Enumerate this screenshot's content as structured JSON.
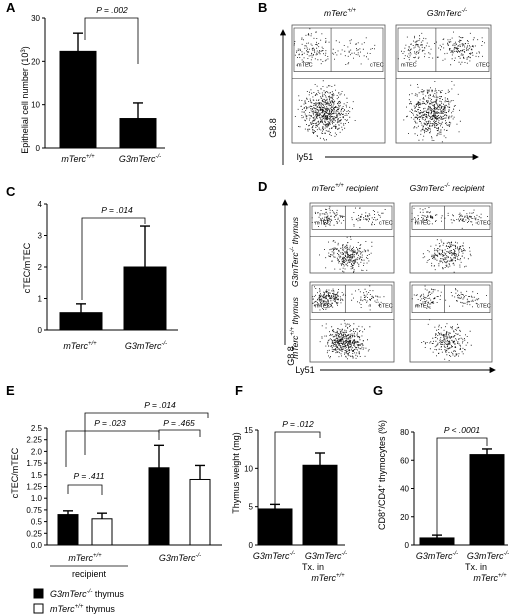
{
  "panels": {
    "A": {
      "label": "A",
      "ylabel": "Epithelial cell number (10",
      "ylabel_sup": "3",
      "ylabel_end": ")",
      "pvalue": "P = .002"
    },
    "B": {
      "label": "B",
      "col1": "mTerc+/+",
      "col2": "G3mTerc-/-",
      "yaxis": "G8.8",
      "xaxis": "ly51",
      "gate_m": "mTEC",
      "gate_c": "cTEC"
    },
    "C": {
      "label": "C",
      "ylabel": "cTEC/mTEC",
      "pvalue": "P = .014"
    },
    "D": {
      "label": "D",
      "col1": "mTerc+/+ recipient",
      "col2": "G3mTerc-/- recipient",
      "row1": "G3mTerc-/- thymus",
      "row2": "mTerc+/+ thymus",
      "yaxis": "G8.8",
      "xaxis": "Ly51",
      "gate_m": "mTEC",
      "gate_c": "cTEC"
    },
    "E": {
      "label": "E",
      "ylabel": "cTEC/mTEC",
      "recipient_label": "recipient",
      "p1": "P = .411",
      "p2": "P = .465",
      "p3": "P = .023",
      "p4": "P = .014"
    },
    "F": {
      "label": "F",
      "ylabel": "Thymus weight (mg)",
      "pvalue": "P = .012",
      "tx": "Tx. in"
    },
    "G": {
      "label": "G",
      "ylabel": "CD8+/CD4+ thymocytes (%)",
      "pvalue": "P < .0001",
      "tx": "Tx. in"
    }
  },
  "legend": {
    "black": "G3mTerc-/- thymus",
    "white": "mTerc+/+ thymus"
  },
  "chart_data": [
    {
      "type": "bar",
      "panel": "A",
      "categories": [
        "mTerc+/+",
        "G3mTerc-/-"
      ],
      "values": [
        22.3,
        6.8
      ],
      "errors": [
        4.2,
        3.6
      ],
      "ylim": [
        0,
        30
      ],
      "yticks": [
        0,
        10,
        20,
        30
      ],
      "ylabel": "Epithelial cell number (10^3)"
    },
    {
      "type": "bar",
      "panel": "C",
      "categories": [
        "mTerc+/+",
        "G3mTerc-/-"
      ],
      "values": [
        0.55,
        2.0
      ],
      "errors": [
        0.28,
        1.3
      ],
      "ylim": [
        0,
        4
      ],
      "yticks": [
        0,
        1,
        2,
        3,
        4
      ],
      "ylabel": "cTEC/mTEC"
    },
    {
      "type": "bar",
      "panel": "E",
      "categories": [
        "mTerc+/+",
        "G3mTerc-/-"
      ],
      "series": [
        {
          "name": "G3mTerc-/- thymus",
          "values": [
            0.65,
            1.65
          ],
          "errors": [
            0.08,
            0.48
          ]
        },
        {
          "name": "mTerc+/+ thymus",
          "values": [
            0.56,
            1.4
          ],
          "errors": [
            0.12,
            0.3
          ]
        }
      ],
      "ylim": [
        0,
        2.5
      ],
      "yticks": [
        0,
        0.25,
        0.5,
        0.75,
        1.0,
        1.25,
        1.5,
        1.75,
        2.0,
        2.25,
        2.5
      ],
      "ylabel": "cTEC/mTEC"
    },
    {
      "type": "bar",
      "panel": "F",
      "categories": [
        "G3mTerc-/-",
        "G3mTerc-/- Tx. in mTerc+/+"
      ],
      "values": [
        4.7,
        10.4
      ],
      "errors": [
        0.6,
        1.6
      ],
      "ylim": [
        0,
        15
      ],
      "yticks": [
        0,
        5,
        10,
        15
      ],
      "ylabel": "Thymus weight (mg)"
    },
    {
      "type": "bar",
      "panel": "G",
      "categories": [
        "G3mTerc-/-",
        "G3mTerc-/- Tx. in mTerc+/+"
      ],
      "values": [
        5,
        64
      ],
      "errors": [
        2,
        4
      ],
      "ylim": [
        0,
        80
      ],
      "yticks": [
        0,
        20,
        40,
        60,
        80
      ],
      "ylabel": "CD8+/CD4+ thymocytes (%)"
    }
  ]
}
